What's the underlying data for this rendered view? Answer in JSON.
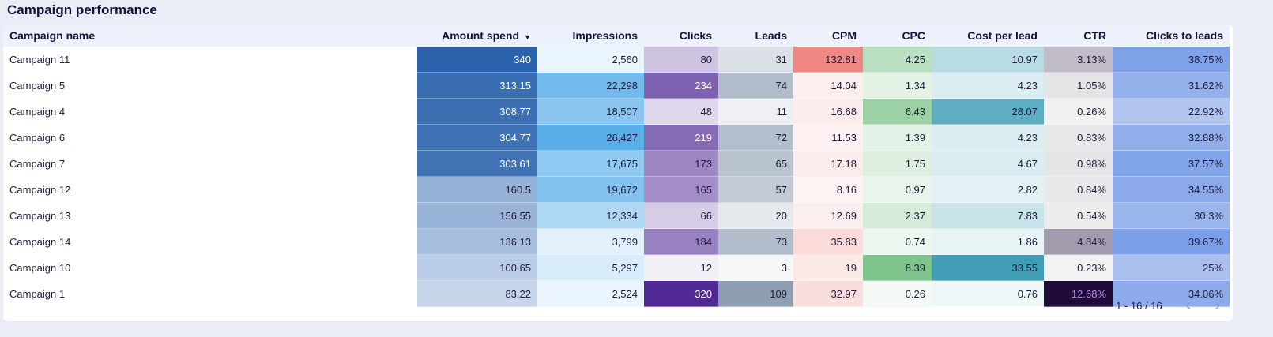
{
  "title": "Campaign performance",
  "columns": [
    "Campaign name",
    "Amount spend",
    "Impressions",
    "Clicks",
    "Leads",
    "CPM",
    "CPC",
    "Cost per lead",
    "CTR",
    "Clicks to leads"
  ],
  "sorted_column": "Amount spend",
  "sort_icon": "caret-down-icon",
  "column_colors": [
    null,
    {
      "low": "#c6d5ea",
      "high": "#2a62ab"
    },
    {
      "low": "#eaf4fc",
      "high": "#5aafe9"
    },
    {
      "low": "#f2eff7",
      "high": "#512a96"
    },
    {
      "low": "#f6f7f9",
      "high": "#8e9fb2"
    },
    {
      "low": "#fdf3f3",
      "high": "#ef8783"
    },
    {
      "low": "#f3f9f4",
      "high": "#7fc48c"
    },
    {
      "low": "#eef6f8",
      "high": "#429eb7"
    },
    {
      "low": "#f2f2f2",
      "high": "#200b3a"
    },
    {
      "low": "#b2c4f0",
      "high": "#7b9fe8"
    }
  ],
  "rows": [
    [
      "Campaign 11",
      "340",
      "2,560",
      "80",
      "31",
      "132.81",
      "4.25",
      "10.97",
      "3.13%",
      "38.75%"
    ],
    [
      "Campaign 5",
      "313.15",
      "22,298",
      "234",
      "74",
      "14.04",
      "1.34",
      "4.23",
      "1.05%",
      "31.62%"
    ],
    [
      "Campaign 4",
      "308.77",
      "18,507",
      "48",
      "11",
      "16.68",
      "6.43",
      "28.07",
      "0.26%",
      "22.92%"
    ],
    [
      "Campaign 6",
      "304.77",
      "26,427",
      "219",
      "72",
      "11.53",
      "1.39",
      "4.23",
      "0.83%",
      "32.88%"
    ],
    [
      "Campaign 7",
      "303.61",
      "17,675",
      "173",
      "65",
      "17.18",
      "1.75",
      "4.67",
      "0.98%",
      "37.57%"
    ],
    [
      "Campaign 12",
      "160.5",
      "19,672",
      "165",
      "57",
      "8.16",
      "0.97",
      "2.82",
      "0.84%",
      "34.55%"
    ],
    [
      "Campaign 13",
      "156.55",
      "12,334",
      "66",
      "20",
      "12.69",
      "2.37",
      "7.83",
      "0.54%",
      "30.3%"
    ],
    [
      "Campaign 14",
      "136.13",
      "3,799",
      "184",
      "73",
      "35.83",
      "0.74",
      "1.86",
      "4.84%",
      "39.67%"
    ],
    [
      "Campaign 10",
      "100.65",
      "5,297",
      "12",
      "3",
      "19",
      "8.39",
      "33.55",
      "0.23%",
      "25%"
    ],
    [
      "Campaign 1",
      "83.22",
      "2,524",
      "320",
      "109",
      "32.97",
      "0.26",
      "0.76",
      "12.68%",
      "34.06%"
    ]
  ],
  "pager": {
    "range": "1 - 16 / 16",
    "prev_icon": "chevron-left-icon",
    "next_icon": "chevron-right-icon",
    "prev": "‹",
    "next": "›"
  }
}
